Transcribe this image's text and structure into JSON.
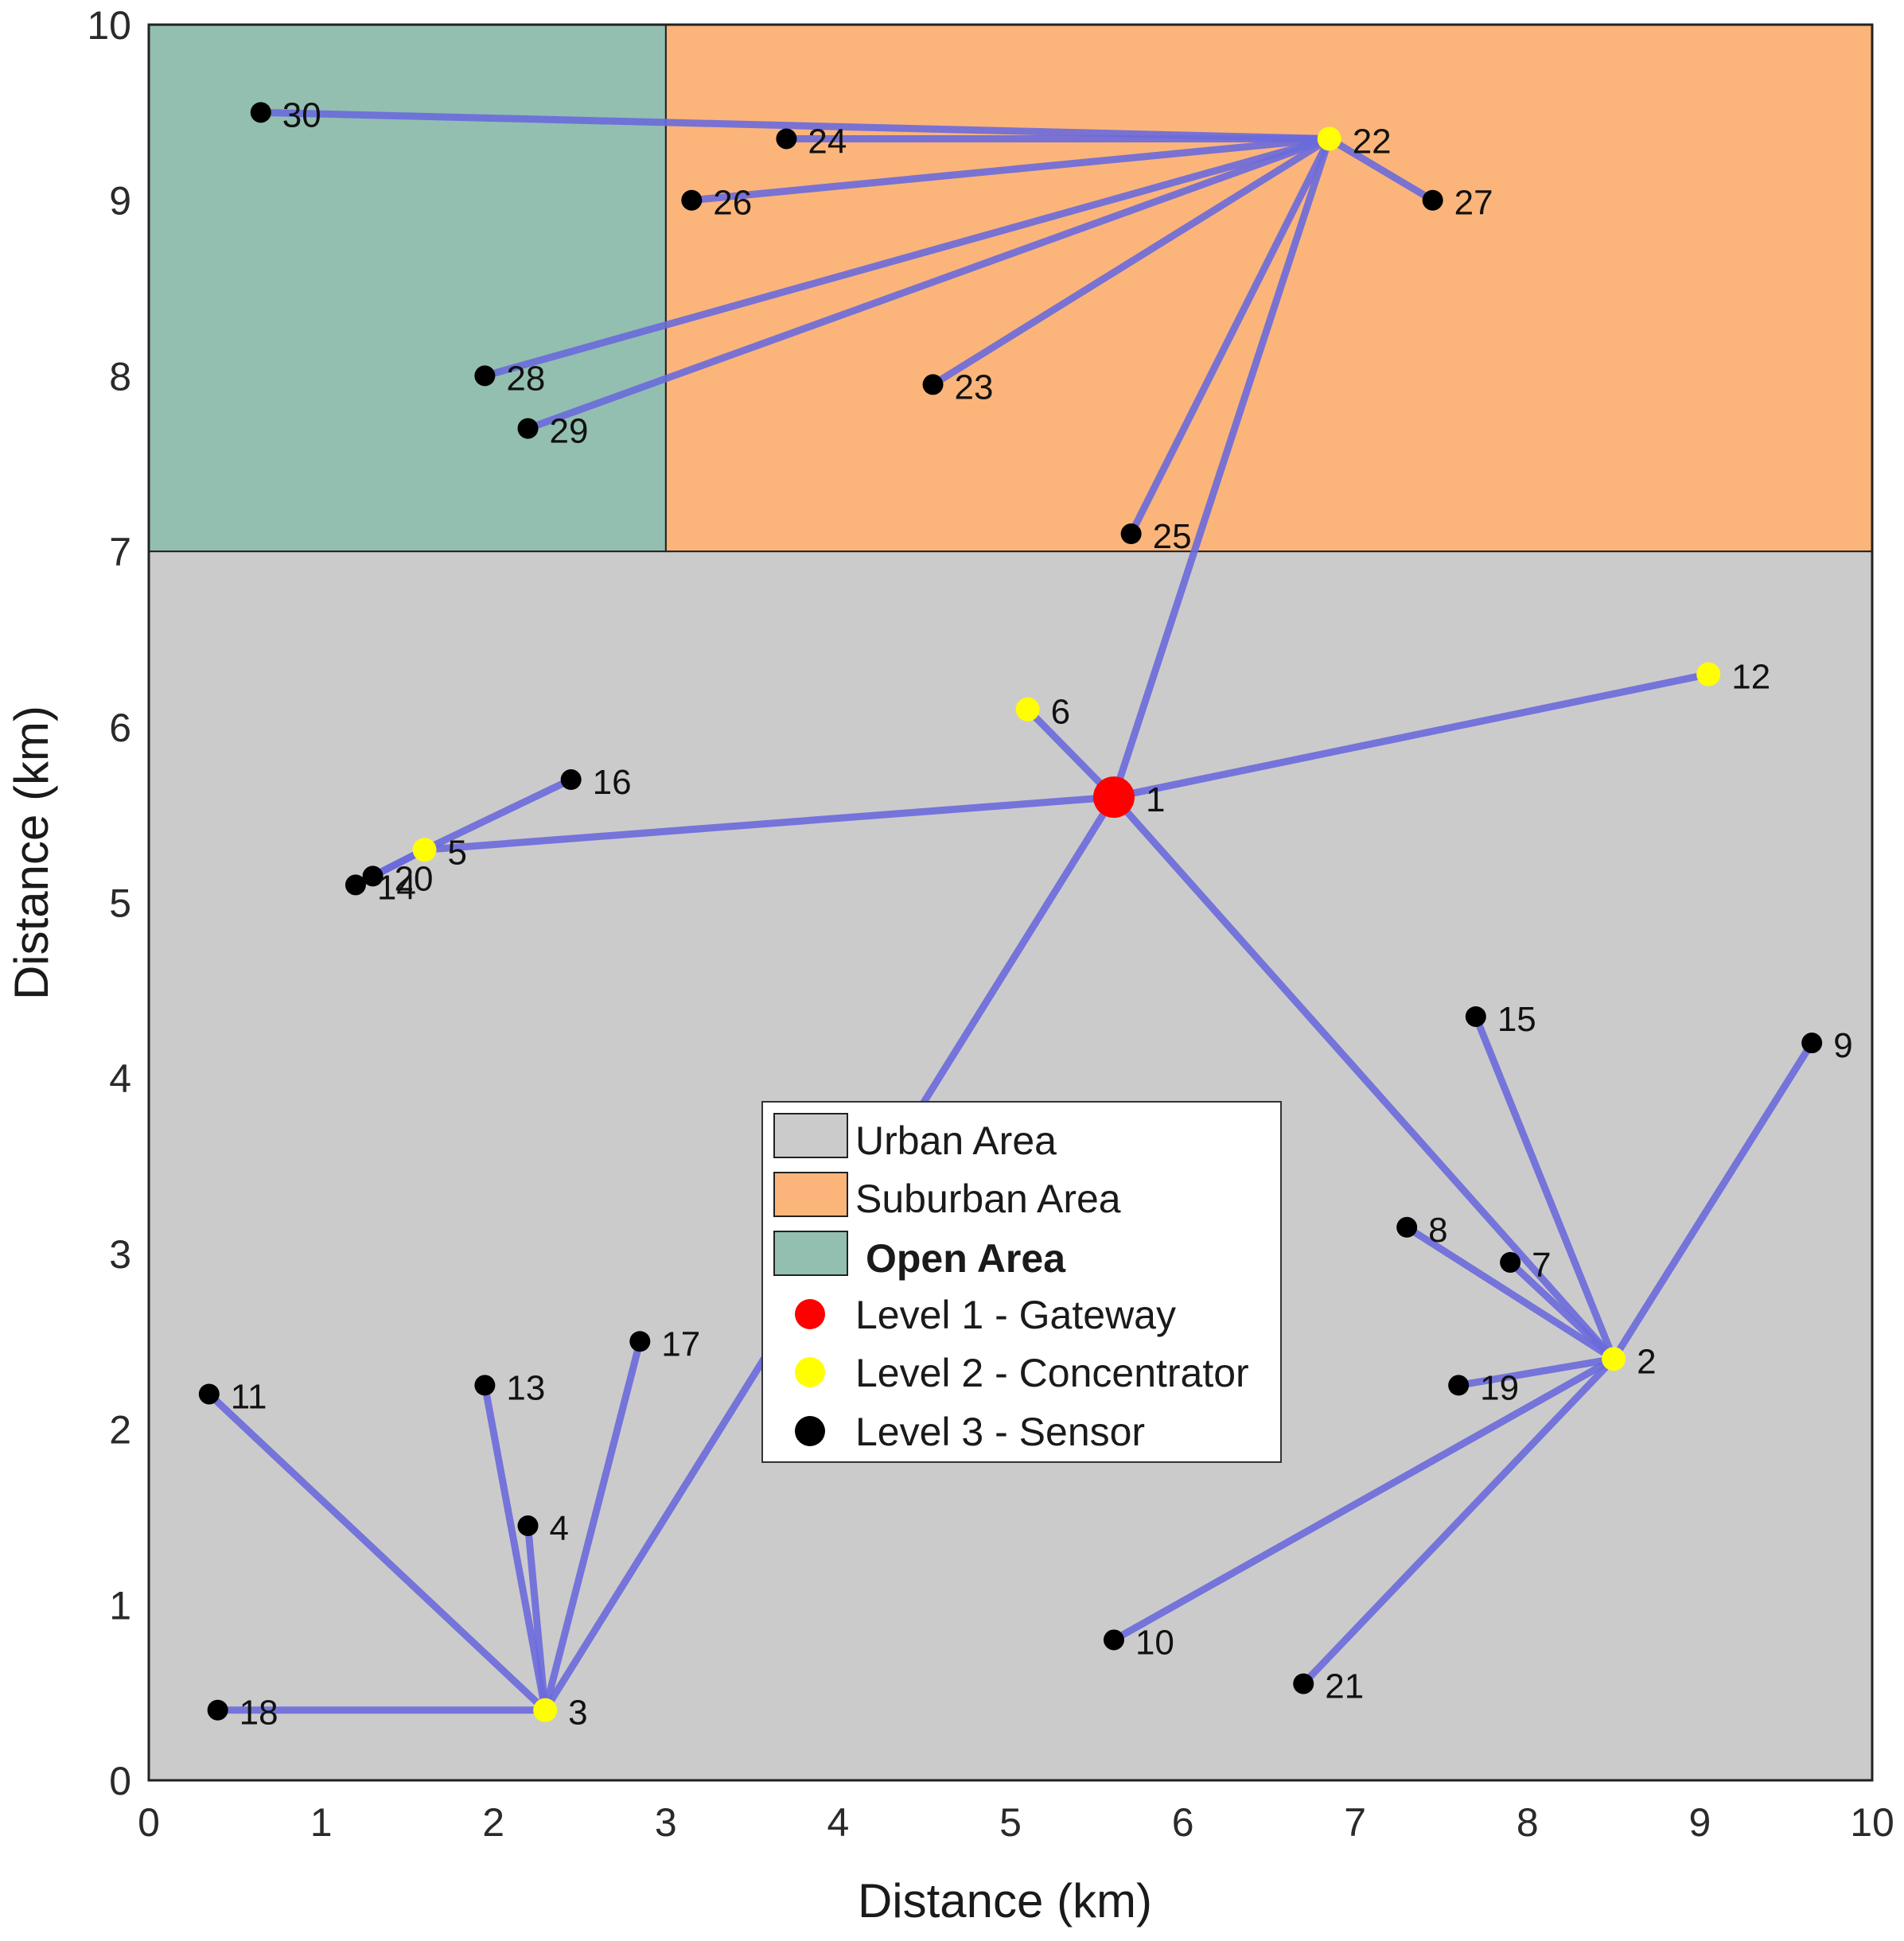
{
  "chart_data": {
    "type": "scatter",
    "title": "",
    "xlabel": "Distance (km)",
    "ylabel": "Distance (km)",
    "xlim": [
      0,
      10
    ],
    "ylim": [
      0,
      10
    ],
    "xticks": [
      "0",
      "1",
      "2",
      "3",
      "4",
      "5",
      "6",
      "7",
      "8",
      "9",
      "10"
    ],
    "yticks": [
      "0",
      "1",
      "2",
      "3",
      "4",
      "5",
      "6",
      "7",
      "8",
      "9",
      "10"
    ],
    "grid": false,
    "legend_position": "center",
    "areas": [
      {
        "name": "Urban Area",
        "color": "#cccbcb",
        "x": [
          0,
          10
        ],
        "y": [
          0,
          7
        ]
      },
      {
        "name": "Suburban Area",
        "color": "#fbb57a",
        "x": [
          3,
          10
        ],
        "y": [
          7,
          10
        ]
      },
      {
        "name": "Open Area",
        "color": "#93bfb0",
        "x": [
          0,
          3
        ],
        "y": [
          7,
          10
        ]
      }
    ],
    "levels": [
      {
        "name": "Level 1 - Gateway",
        "color": "#ff0000"
      },
      {
        "name": "Level 2 - Concentrator",
        "color": "#ffff00"
      },
      {
        "name": "Level 3 - Sensor",
        "color": "#000000"
      }
    ],
    "link_color": "#6a6adc",
    "nodes": [
      {
        "id": "1",
        "x": 5.6,
        "y": 5.6,
        "level": 1
      },
      {
        "id": "2",
        "x": 8.5,
        "y": 2.4,
        "level": 2
      },
      {
        "id": "3",
        "x": 2.3,
        "y": 0.4,
        "level": 2
      },
      {
        "id": "4",
        "x": 2.2,
        "y": 1.45,
        "level": 3
      },
      {
        "id": "5",
        "x": 1.6,
        "y": 5.3,
        "level": 2
      },
      {
        "id": "6",
        "x": 5.1,
        "y": 6.1,
        "level": 2
      },
      {
        "id": "7",
        "x": 7.9,
        "y": 2.95,
        "level": 3
      },
      {
        "id": "8",
        "x": 7.3,
        "y": 3.15,
        "level": 3
      },
      {
        "id": "9",
        "x": 9.65,
        "y": 4.2,
        "level": 3
      },
      {
        "id": "10",
        "x": 5.6,
        "y": 0.8,
        "level": 3
      },
      {
        "id": "11",
        "x": 0.35,
        "y": 2.2,
        "level": 3
      },
      {
        "id": "12",
        "x": 9.05,
        "y": 6.3,
        "level": 2
      },
      {
        "id": "13",
        "x": 1.95,
        "y": 2.25,
        "level": 3
      },
      {
        "id": "14",
        "x": 1.2,
        "y": 5.1,
        "level": 3
      },
      {
        "id": "15",
        "x": 7.7,
        "y": 4.35,
        "level": 3
      },
      {
        "id": "16",
        "x": 2.45,
        "y": 5.7,
        "level": 3
      },
      {
        "id": "17",
        "x": 2.85,
        "y": 2.5,
        "level": 3
      },
      {
        "id": "18",
        "x": 0.4,
        "y": 0.4,
        "level": 3
      },
      {
        "id": "19",
        "x": 7.6,
        "y": 2.25,
        "level": 3
      },
      {
        "id": "20",
        "x": 1.3,
        "y": 5.15,
        "level": 3
      },
      {
        "id": "21",
        "x": 6.7,
        "y": 0.55,
        "level": 3
      },
      {
        "id": "22",
        "x": 6.85,
        "y": 9.35,
        "level": 2
      },
      {
        "id": "23",
        "x": 4.55,
        "y": 7.95,
        "level": 3
      },
      {
        "id": "24",
        "x": 3.7,
        "y": 9.35,
        "level": 3
      },
      {
        "id": "25",
        "x": 5.7,
        "y": 7.1,
        "level": 3
      },
      {
        "id": "26",
        "x": 3.15,
        "y": 9.0,
        "level": 3
      },
      {
        "id": "27",
        "x": 7.45,
        "y": 9.0,
        "level": 3
      },
      {
        "id": "28",
        "x": 1.95,
        "y": 8.0,
        "level": 3
      },
      {
        "id": "29",
        "x": 2.2,
        "y": 7.7,
        "level": 3
      },
      {
        "id": "30",
        "x": 0.65,
        "y": 9.5,
        "level": 3
      }
    ],
    "links": [
      [
        "1",
        "2"
      ],
      [
        "1",
        "3"
      ],
      [
        "1",
        "5"
      ],
      [
        "1",
        "6"
      ],
      [
        "1",
        "12"
      ],
      [
        "1",
        "22"
      ],
      [
        "2",
        "7"
      ],
      [
        "2",
        "8"
      ],
      [
        "2",
        "9"
      ],
      [
        "2",
        "10"
      ],
      [
        "2",
        "15"
      ],
      [
        "2",
        "19"
      ],
      [
        "2",
        "21"
      ],
      [
        "3",
        "4"
      ],
      [
        "3",
        "11"
      ],
      [
        "3",
        "13"
      ],
      [
        "3",
        "17"
      ],
      [
        "3",
        "18"
      ],
      [
        "5",
        "14"
      ],
      [
        "5",
        "16"
      ],
      [
        "5",
        "20"
      ],
      [
        "22",
        "23"
      ],
      [
        "22",
        "24"
      ],
      [
        "22",
        "25"
      ],
      [
        "22",
        "26"
      ],
      [
        "22",
        "27"
      ],
      [
        "22",
        "28"
      ],
      [
        "22",
        "29"
      ],
      [
        "22",
        "30"
      ]
    ]
  }
}
